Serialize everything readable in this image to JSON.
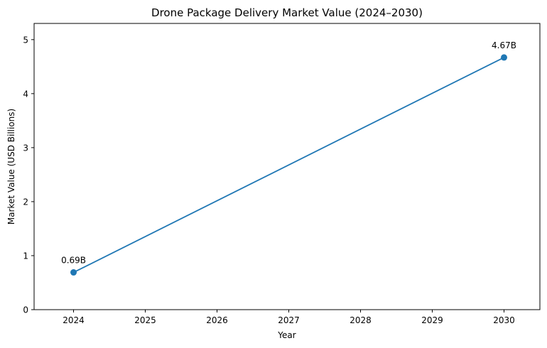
{
  "chart_data": {
    "type": "line",
    "title": "Drone Package Delivery Market Value (2024–2030)",
    "xlabel": "Year",
    "ylabel": "Market Value (USD Billions)",
    "xlim": [
      2023.45,
      2030.5
    ],
    "ylim": [
      0,
      5.3
    ],
    "x_ticks": [
      2024,
      2025,
      2026,
      2027,
      2028,
      2029,
      2030
    ],
    "y_ticks": [
      0,
      1,
      2,
      3,
      4,
      5
    ],
    "grid": false,
    "series": [
      {
        "color": "#1f77b4",
        "x": [
          2024,
          2030
        ],
        "y": [
          0.69,
          4.67
        ],
        "labels": [
          "0.69B",
          "4.67B"
        ]
      }
    ]
  }
}
